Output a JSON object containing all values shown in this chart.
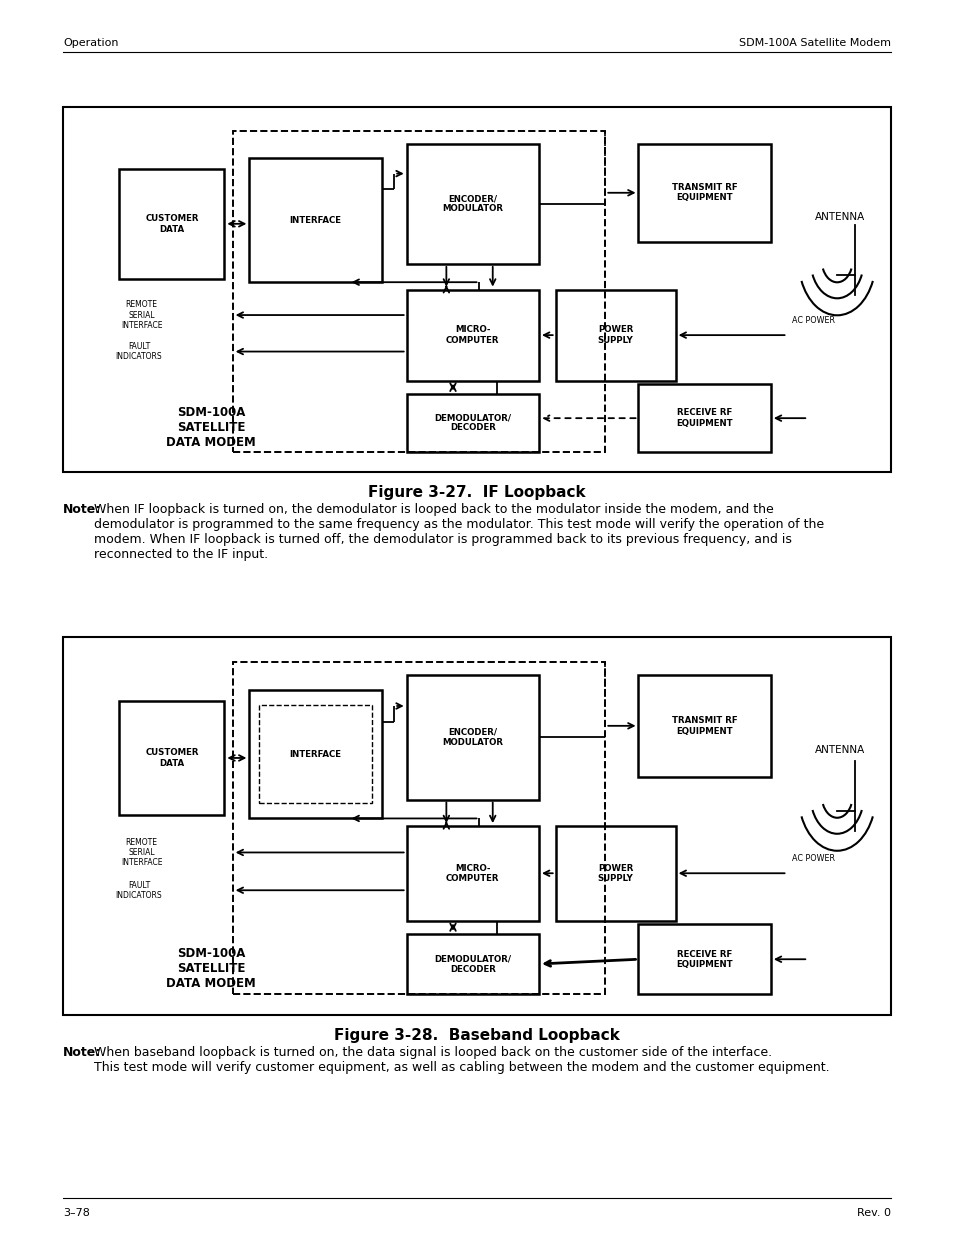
{
  "page_bg": "#ffffff",
  "header_left": "Operation",
  "header_right": "SDM-100A Satellite Modem",
  "footer_left": "3–78",
  "footer_right": "Rev. 0",
  "fig1_title": "Figure 3-27.  IF Loopback",
  "fig1_note_bold": "Note:",
  "fig1_note_text": " When IF loopback is turned on, the demodulator is looped back to the modulator inside the modem, and the demodulator is programmed to the same frequency as the modulator. This test mode will verify the operation of the modem. When IF loopback is turned off, the demodulator is programmed back to its previous frequency, and is reconnected to the IF input.",
  "fig2_title": "Figure 3-28.  Baseband Loopback",
  "fig2_note_bold": "Note:",
  "fig2_note_text": " When baseband loopback is turned on, the data signal is looped back on the customer side of the interface. This test mode will verify customer equipment, as well as cabling between the modem and the customer equipment."
}
